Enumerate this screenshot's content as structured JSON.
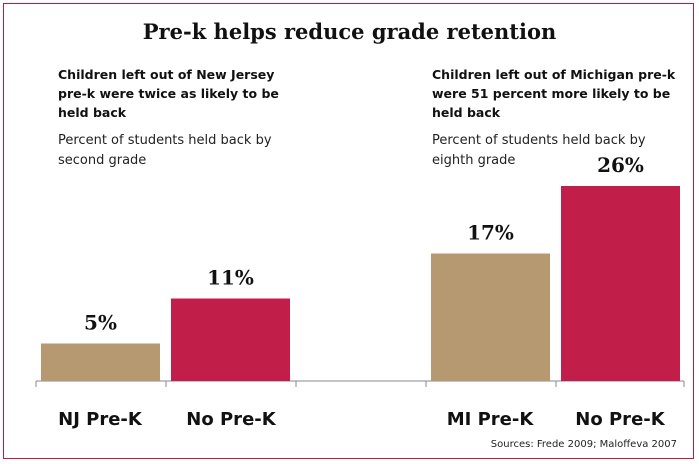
{
  "title": "Pre-k helps reduce grade retention",
  "panels": [
    {
      "headline": "Children left out of New Jersey pre-k were twice as likely to be held back",
      "subtitle": "Percent of students held back by second grade"
    },
    {
      "headline": "Children left out of Michigan pre-k were 51 percent more likely to be held back",
      "subtitle": "Percent of students held back by eighth grade"
    }
  ],
  "sources": "Sources: Frede 2009; Maloffeva  2007",
  "colors": {
    "pre_k": "#b69871",
    "no_pre_k": "#c11f49",
    "border": "#b81d3d",
    "axis": "#8a8a8a"
  },
  "chart_data": {
    "type": "bar",
    "categories": [
      "NJ Pre-K",
      "No Pre-K",
      "MI Pre-K",
      "No Pre-K"
    ],
    "values": [
      5,
      11,
      17,
      26
    ],
    "value_labels": [
      "5%",
      "11%",
      "17%",
      "26%"
    ],
    "title": "Pre-k helps reduce grade retention",
    "xlabel": "",
    "ylabel": "",
    "ylim": [
      0,
      26
    ],
    "grid": false,
    "legend": "none"
  }
}
